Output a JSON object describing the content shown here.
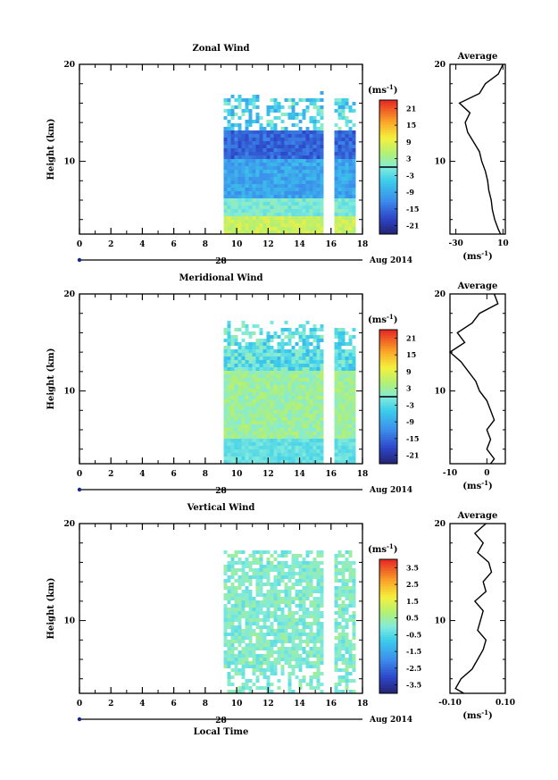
{
  "chart_data": [
    {
      "type": "heatmap",
      "title": "Zonal Wind",
      "ylabel": "Height (km)",
      "x_ticks": [
        "0",
        "2",
        "4",
        "6",
        "8",
        "10",
        "12",
        "14",
        "16",
        "18"
      ],
      "x_range": [
        0,
        18
      ],
      "y_ticks": [
        "20",
        "10"
      ],
      "y_range": [
        2.5,
        20
      ],
      "date_tick": "28",
      "date_unit": "Aug 2014",
      "data_start_hour": 9,
      "data_gap_hours": [
        15.6,
        16.0
      ],
      "colorbar": {
        "unit_base": "(ms",
        "unit_exp": "-1",
        "unit_close": ")",
        "ticks": [
          "21",
          "15",
          "9",
          "3",
          "-3",
          "-9",
          "-15",
          "-21"
        ],
        "range": [
          -24,
          24
        ],
        "zero_line": true
      },
      "profile": {
        "title": "Average",
        "x_ticks": [
          "-30",
          "10"
        ],
        "x_range": [
          -35,
          12
        ],
        "y_ticks": [
          "20",
          "10"
        ],
        "xlabel_base": "(ms",
        "xlabel_exp": "-1",
        "xlabel_close": ")",
        "heights": [
          2.5,
          3,
          4,
          5,
          6,
          7,
          8,
          9,
          10,
          11,
          12,
          13,
          14,
          15,
          16,
          17,
          18,
          19,
          20
        ],
        "values": [
          8,
          6,
          3,
          1,
          0,
          -2,
          -3,
          -5,
          -8,
          -10,
          -15,
          -20,
          -22,
          -18,
          -27,
          -10,
          -5,
          6,
          10
        ]
      }
    },
    {
      "type": "heatmap",
      "title": "Meridional Wind",
      "ylabel": "Height (km)",
      "x_ticks": [
        "0",
        "2",
        "4",
        "6",
        "8",
        "10",
        "12",
        "14",
        "16",
        "18"
      ],
      "x_range": [
        0,
        18
      ],
      "y_ticks": [
        "20",
        "10"
      ],
      "y_range": [
        2.5,
        20
      ],
      "date_tick": "28",
      "date_unit": "Aug 2014",
      "data_start_hour": 9,
      "data_gap_hours": [
        15.6,
        16.0
      ],
      "colorbar": {
        "unit_base": "(ms",
        "unit_exp": "-1",
        "unit_close": ")",
        "ticks": [
          "21",
          "15",
          "9",
          "3",
          "-3",
          "-9",
          "-15",
          "-21"
        ],
        "range": [
          -24,
          24
        ],
        "zero_line": true
      },
      "profile": {
        "title": "Average",
        "x_ticks": [
          "-10",
          "0"
        ],
        "x_range": [
          -10,
          5
        ],
        "y_ticks": [
          "20",
          "10"
        ],
        "xlabel_base": "(ms",
        "xlabel_exp": "-1",
        "xlabel_close": ")",
        "heights": [
          2.5,
          3,
          4,
          5,
          6,
          7,
          8,
          9,
          10,
          11,
          12,
          13,
          14,
          15,
          16,
          17,
          18,
          19,
          20
        ],
        "values": [
          1,
          2,
          0,
          1,
          0,
          2,
          1,
          0,
          -2,
          -3,
          -5,
          -7,
          -10,
          -6,
          -8,
          -4,
          -2,
          3,
          2
        ]
      }
    },
    {
      "type": "heatmap",
      "title": "Vertical Wind",
      "ylabel": "Height (km)",
      "xlabel": "Local Time",
      "x_ticks": [
        "0",
        "2",
        "4",
        "6",
        "8",
        "10",
        "12",
        "14",
        "16",
        "18"
      ],
      "x_range": [
        0,
        18
      ],
      "y_ticks": [
        "20",
        "10"
      ],
      "y_range": [
        2.5,
        20
      ],
      "date_tick": "28",
      "date_unit": "Aug 2014",
      "data_start_hour": 9,
      "data_gap_hours": [
        15.6,
        16.0
      ],
      "colorbar": {
        "unit_base": "(ms",
        "unit_exp": "-1",
        "unit_close": ")",
        "ticks": [
          "3.5",
          "2.5",
          "1.5",
          "0.5",
          "-0.5",
          "-1.5",
          "-2.5",
          "-3.5"
        ],
        "range": [
          -4,
          4
        ],
        "zero_line": false
      },
      "profile": {
        "title": "Average",
        "x_ticks": [
          "-0.10",
          "0.10"
        ],
        "x_range": [
          -0.1,
          0.1
        ],
        "y_ticks": [
          "20",
          "10"
        ],
        "xlabel_base": "(ms",
        "xlabel_exp": "-1",
        "xlabel_close": ")",
        "heights": [
          2.5,
          3,
          4,
          5,
          6,
          7,
          8,
          9,
          10,
          11,
          12,
          13,
          14,
          15,
          16,
          17,
          18,
          19,
          20
        ],
        "values": [
          -0.05,
          -0.08,
          -0.06,
          -0.02,
          0.0,
          0.02,
          0.03,
          0.0,
          0.01,
          0.02,
          -0.01,
          0.03,
          0.02,
          0.05,
          0.04,
          0.0,
          0.02,
          -0.01,
          0.03
        ]
      }
    }
  ]
}
